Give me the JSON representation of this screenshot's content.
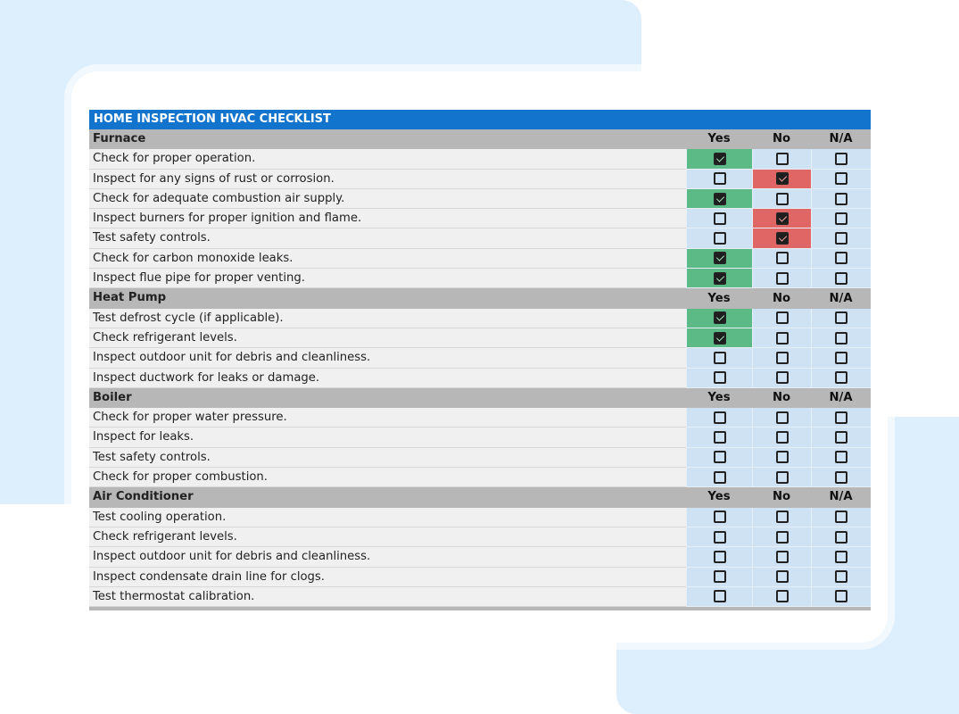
{
  "title": "HOME INSPECTION HVAC CHECKLIST",
  "columns": [
    "Yes",
    "No",
    "N/A"
  ],
  "colors": {
    "header": "#1274cd",
    "yes": "#5cba86",
    "no": "#e06666",
    "cell": "#cfe2f3"
  },
  "sections": [
    {
      "name": "Furnace",
      "items": [
        {
          "label": "Check for proper operation.",
          "answer": "Yes"
        },
        {
          "label": "Inspect for any signs of rust or corrosion.",
          "answer": "No"
        },
        {
          "label": "Check for adequate combustion air supply.",
          "answer": "Yes"
        },
        {
          "label": "Inspect burners for proper ignition and flame.",
          "answer": "No"
        },
        {
          "label": "Test safety controls.",
          "answer": "No"
        },
        {
          "label": "Check for carbon monoxide leaks.",
          "answer": "Yes"
        },
        {
          "label": "Inspect flue pipe for proper venting.",
          "answer": "Yes"
        }
      ]
    },
    {
      "name": "Heat Pump",
      "items": [
        {
          "label": "Test defrost cycle (if applicable).",
          "answer": "Yes"
        },
        {
          "label": "Check refrigerant levels.",
          "answer": "Yes"
        },
        {
          "label": "Inspect outdoor unit for debris and cleanliness.",
          "answer": ""
        },
        {
          "label": "Inspect ductwork for leaks or damage.",
          "answer": ""
        }
      ]
    },
    {
      "name": "Boiler",
      "items": [
        {
          "label": "Check for proper water pressure.",
          "answer": ""
        },
        {
          "label": "Inspect for leaks.",
          "answer": ""
        },
        {
          "label": "Test safety controls.",
          "answer": ""
        },
        {
          "label": "Check for proper combustion.",
          "answer": ""
        }
      ]
    },
    {
      "name": "Air Conditioner",
      "items": [
        {
          "label": "Test cooling operation.",
          "answer": ""
        },
        {
          "label": "Check refrigerant levels.",
          "answer": ""
        },
        {
          "label": "Inspect outdoor unit for debris and cleanliness.",
          "answer": ""
        },
        {
          "label": "Inspect condensate drain line for clogs.",
          "answer": ""
        },
        {
          "label": "Test thermostat calibration.",
          "answer": ""
        }
      ]
    }
  ]
}
